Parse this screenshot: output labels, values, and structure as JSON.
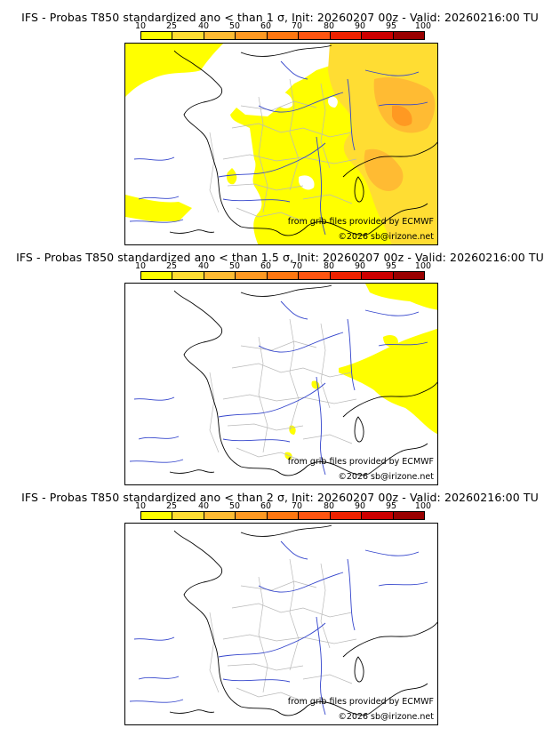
{
  "scale": {
    "labels": [
      "10",
      "25",
      "40",
      "50",
      "60",
      "70",
      "80",
      "90",
      "95",
      "100"
    ],
    "colors": [
      "#ffff00",
      "#ffdd33",
      "#ffbb33",
      "#ff9922",
      "#ff7711",
      "#ff5511",
      "#ee2200",
      "#cc0000",
      "#990000"
    ]
  },
  "panels": [
    {
      "title": "IFS - Probas T850  standardized ano < than 1 σ, Init: 20260207 00z - Valid: 20260216:00 TU",
      "source_credit": "from grib files provided by ECMWF",
      "copyright": "©2026 sb@irizone.net"
    },
    {
      "title": "IFS - Probas T850  standardized ano < than 1.5 σ, Init: 20260207 00z - Valid: 20260216:00 TU",
      "source_credit": "from grib files provided by ECMWF",
      "copyright": "©2026 sb@irizone.net"
    },
    {
      "title": "IFS - Probas T850  standardized ano < than 2 σ, Init: 20260207 00z - Valid: 20260216:00 TU",
      "source_credit": "from grib files provided by ECMWF",
      "copyright": "©2026 sb@irizone.net"
    }
  ]
}
